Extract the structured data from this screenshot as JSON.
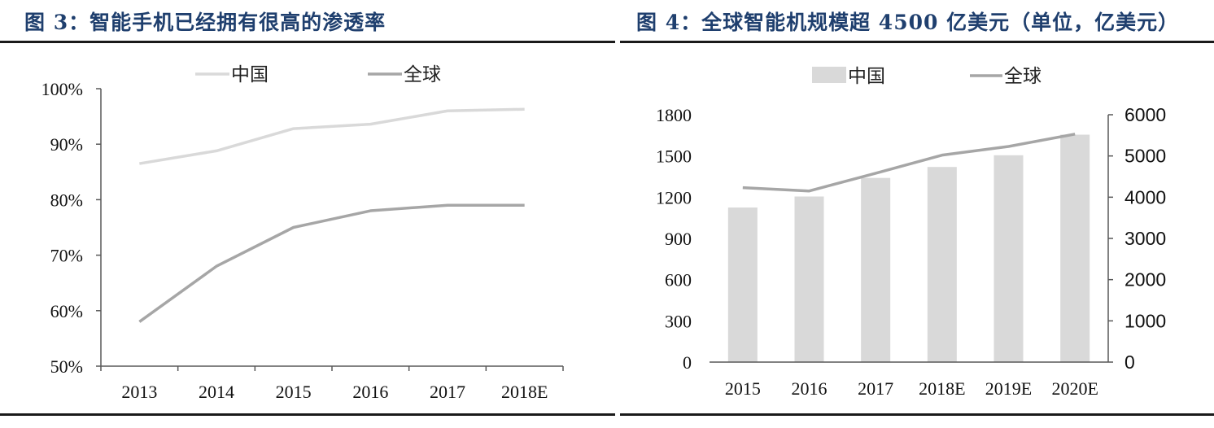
{
  "figures": {
    "left_title": "图 3：智能手机已经拥有很高的渗透率",
    "right_title": "图 4：全球智能机规模超 4500 亿美元（单位，亿美元）"
  },
  "colors": {
    "title_blue": "#1f3f6e",
    "china_line": "#d9d9d9",
    "global_line": "#a6a6a6",
    "china_bar": "#d9d9d9"
  },
  "chart_data": [
    {
      "type": "line",
      "title": "图 3：智能手机已经拥有很高的渗透率",
      "categories": [
        "2013",
        "2014",
        "2015",
        "2016",
        "2017",
        "2018E"
      ],
      "series": [
        {
          "name": "中国",
          "values": [
            86.5,
            88.8,
            92.8,
            93.6,
            96.0,
            96.3
          ]
        },
        {
          "name": "全球",
          "values": [
            58.0,
            68.0,
            75.0,
            78.0,
            79.0,
            79.0
          ]
        }
      ],
      "y_ticks": [
        "50%",
        "60%",
        "70%",
        "80%",
        "90%",
        "100%"
      ],
      "ylim": [
        50,
        100
      ],
      "legend_position": "top",
      "grid": false
    },
    {
      "type": "bar",
      "title": "图 4：全球智能机规模超 4500 亿美元（单位，亿美元）",
      "categories": [
        "2015",
        "2016",
        "2017",
        "2018E",
        "2019E",
        "2020E"
      ],
      "series": [
        {
          "name": "中国",
          "chart": "bar",
          "axis": "left",
          "values": [
            1125,
            1205,
            1340,
            1420,
            1505,
            1655
          ]
        },
        {
          "name": "全球",
          "chart": "line",
          "axis": "right",
          "values": [
            4230,
            4150,
            4580,
            5020,
            5230,
            5530
          ]
        }
      ],
      "y_left_ticks": [
        "0",
        "300",
        "600",
        "900",
        "1200",
        "1500",
        "1800"
      ],
      "y_right_ticks": [
        "0",
        "1000",
        "2000",
        "3000",
        "4000",
        "5000",
        "6000"
      ],
      "ylim_left": [
        0,
        1800
      ],
      "ylim_right": [
        0,
        6000
      ],
      "legend_position": "top",
      "grid": false
    }
  ]
}
